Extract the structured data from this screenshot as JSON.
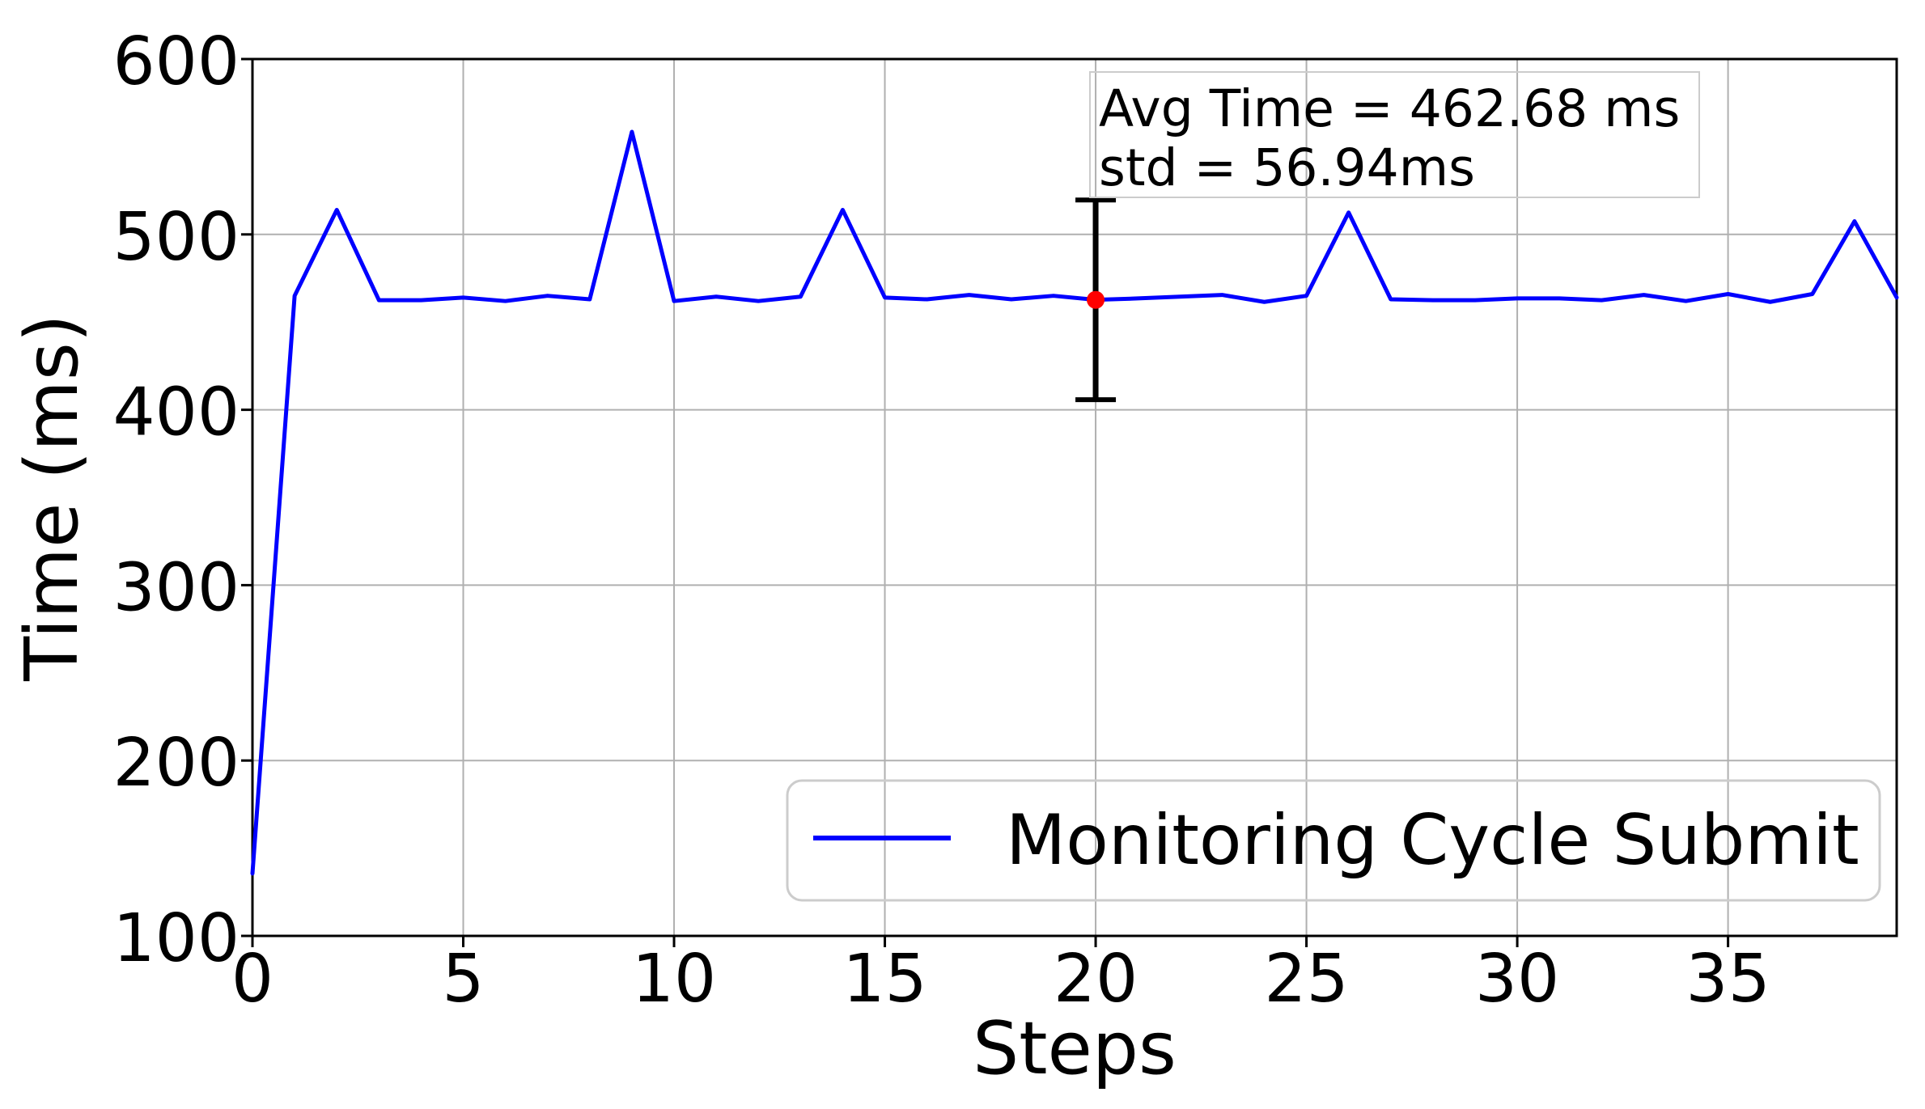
{
  "figure": {
    "background": "#ffffff",
    "annotation": {
      "line1": "Avg Time = 462.68 ms",
      "line2": "std = 56.94ms"
    },
    "legend": {
      "label": "Monitoring Cycle Submit"
    },
    "colors": {
      "line": "#0000ff",
      "marker": "#ff0000",
      "errorbar": "#000000",
      "grid": "#b0b0b0",
      "spine": "#000000",
      "box_edge": "#cccccc",
      "text": "#000000"
    }
  },
  "chart_data": {
    "type": "line",
    "title": "",
    "xlabel": "Steps",
    "ylabel": "Time (ms)",
    "xlim": [
      0,
      39
    ],
    "ylim": [
      100,
      600
    ],
    "xticks": [
      0,
      5,
      10,
      15,
      20,
      25,
      30,
      35
    ],
    "yticks": [
      100,
      200,
      300,
      400,
      500,
      600
    ],
    "grid": true,
    "legend_position": "lower right",
    "series": [
      {
        "name": "Monitoring Cycle Submit",
        "color": "#0000ff",
        "x": [
          0,
          1,
          2,
          3,
          4,
          5,
          6,
          7,
          8,
          9,
          10,
          11,
          12,
          13,
          14,
          15,
          16,
          17,
          18,
          19,
          20,
          21,
          22,
          23,
          24,
          25,
          26,
          27,
          28,
          29,
          30,
          31,
          32,
          33,
          34,
          35,
          36,
          37,
          38,
          39
        ],
        "values": [
          135.6,
          465,
          514,
          462.5,
          462.5,
          464,
          462,
          465,
          463,
          558.5,
          462,
          464.5,
          462,
          464.5,
          514,
          464,
          463,
          465.5,
          463,
          465,
          462.7,
          463.5,
          464.5,
          465.5,
          461.5,
          465,
          512.5,
          463,
          462.5,
          462.5,
          463.5,
          463.5,
          462.5,
          465.5,
          462,
          466,
          461.5,
          466,
          507.5,
          464
        ]
      }
    ],
    "errorbar": {
      "x": 20,
      "y": 462.68,
      "std": 56.94,
      "marker_color": "#ff0000"
    },
    "stats": {
      "avg_ms": 462.68,
      "std_ms": 56.94
    }
  }
}
